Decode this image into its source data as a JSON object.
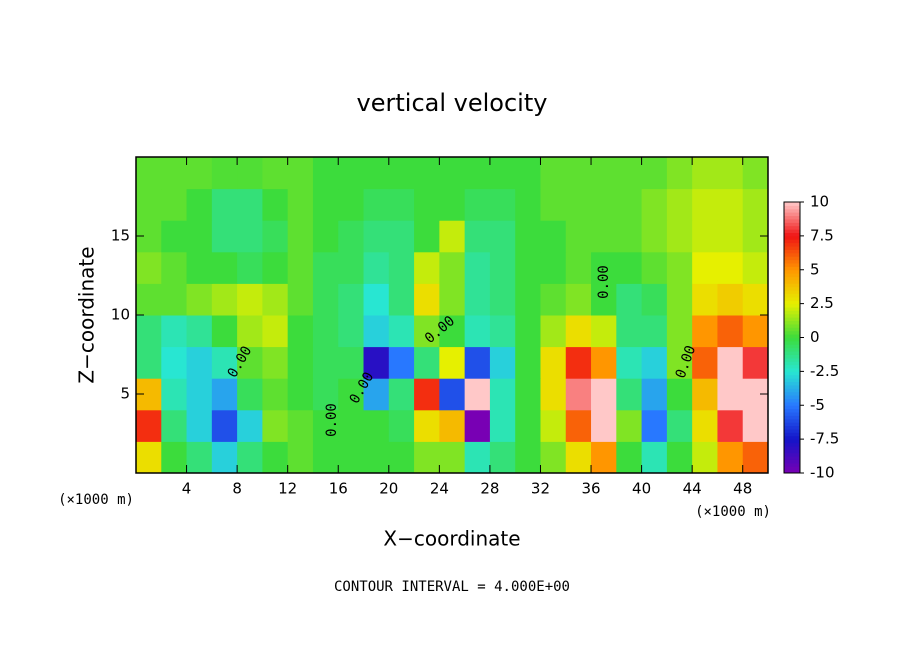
{
  "chart_data": {
    "type": "heatmap",
    "title": "vertical velocity",
    "xlabel": "X−coordinate",
    "ylabel": "Z−coordinate",
    "x_unit_label": "(×1000 m)",
    "footnote": "CONTOUR INTERVAL = 4.000E+00",
    "contour_label": "0.00",
    "xlim": [
      0,
      50
    ],
    "ylim": [
      0,
      20
    ],
    "xticks": [
      4,
      8,
      12,
      16,
      20,
      24,
      28,
      32,
      36,
      40,
      44,
      48
    ],
    "yticks": [
      5,
      10,
      15
    ],
    "x": [
      1,
      3,
      5,
      7,
      9,
      11,
      13,
      15,
      17,
      19,
      21,
      23,
      25,
      27,
      29,
      31,
      33,
      35,
      37,
      39,
      41,
      43,
      45,
      47,
      49
    ],
    "y": [
      1,
      3,
      5,
      7,
      9,
      11,
      13,
      15,
      17,
      19
    ],
    "z": [
      [
        3,
        0,
        -1,
        -3,
        -1,
        0,
        0.5,
        0,
        0,
        0,
        0,
        1,
        1,
        -2,
        -1,
        0,
        1,
        3,
        5,
        0,
        -2,
        0,
        2,
        5,
        6
      ],
      [
        7,
        -1,
        -3,
        -6,
        -3,
        1,
        0.5,
        0,
        0,
        0,
        -0.5,
        3,
        4,
        -10,
        -2,
        0,
        2,
        6,
        10,
        1,
        -5,
        -1,
        3,
        8,
        10
      ],
      [
        4,
        -2,
        -3,
        -4,
        -0.5,
        0.5,
        0,
        -0.5,
        0,
        -4,
        -1,
        7,
        -6,
        12,
        -2,
        0,
        3,
        9,
        10,
        -1,
        -4,
        0,
        4,
        12,
        11
      ],
      [
        -1,
        -2.5,
        -3,
        -2,
        0.5,
        1,
        0,
        -0.5,
        -0.5,
        -8,
        -5,
        -1,
        2.5,
        -6,
        -3,
        0,
        3,
        7,
        5,
        -2,
        -3,
        1,
        6,
        11,
        8
      ],
      [
        -1,
        -2,
        -1.5,
        0,
        1.5,
        2,
        0,
        -0.5,
        -1,
        -3,
        -2,
        1,
        0,
        -2,
        -1.5,
        0,
        1.5,
        3,
        2,
        -1,
        -1,
        1,
        5,
        6,
        5
      ],
      [
        0.5,
        0.5,
        1,
        1.5,
        2,
        1.5,
        0.5,
        -0.5,
        -1,
        -2.5,
        -1,
        3,
        1,
        -1.5,
        -1,
        0,
        0.5,
        1,
        0,
        -1,
        -0.5,
        1,
        3,
        3.5,
        3
      ],
      [
        1,
        0.5,
        0,
        0,
        -0.5,
        0,
        0.5,
        -0.5,
        -0.5,
        -1.5,
        -1,
        2,
        1,
        -1.5,
        -1,
        0,
        0,
        0.5,
        0,
        0,
        0.5,
        1,
        2.5,
        2.5,
        2
      ],
      [
        0.5,
        0,
        0,
        -1,
        -1,
        -0.5,
        0.5,
        0,
        -0.5,
        -1,
        -1,
        0,
        2,
        -1,
        -1,
        0,
        0,
        0.5,
        0.5,
        0.5,
        1,
        1.5,
        2,
        2,
        1.5
      ],
      [
        0.5,
        0.5,
        0,
        -1,
        -1,
        0,
        0.5,
        0,
        0,
        -0.5,
        -0.5,
        0,
        0,
        -0.5,
        -0.5,
        0,
        0.5,
        0.5,
        0.5,
        0.5,
        1,
        1.5,
        2,
        2,
        1.5
      ],
      [
        0.5,
        0.5,
        0.5,
        0.3,
        0.3,
        0.5,
        0.5,
        0,
        0,
        0,
        0,
        0,
        0,
        0,
        0,
        0,
        0.5,
        0.5,
        0.5,
        0.5,
        0.5,
        1,
        1.5,
        1.5,
        1
      ]
    ],
    "clim": [
      -10,
      10
    ],
    "cticks": [
      -10,
      -7.5,
      -5,
      -2.5,
      0,
      2.5,
      5,
      7.5,
      10
    ],
    "colors": [
      "#7800b4",
      "#1414c8",
      "#2878ff",
      "#28e6d2",
      "#3cdc3c",
      "#e6f000",
      "#ff9600",
      "#f01414",
      "#ffc8c8"
    ]
  }
}
